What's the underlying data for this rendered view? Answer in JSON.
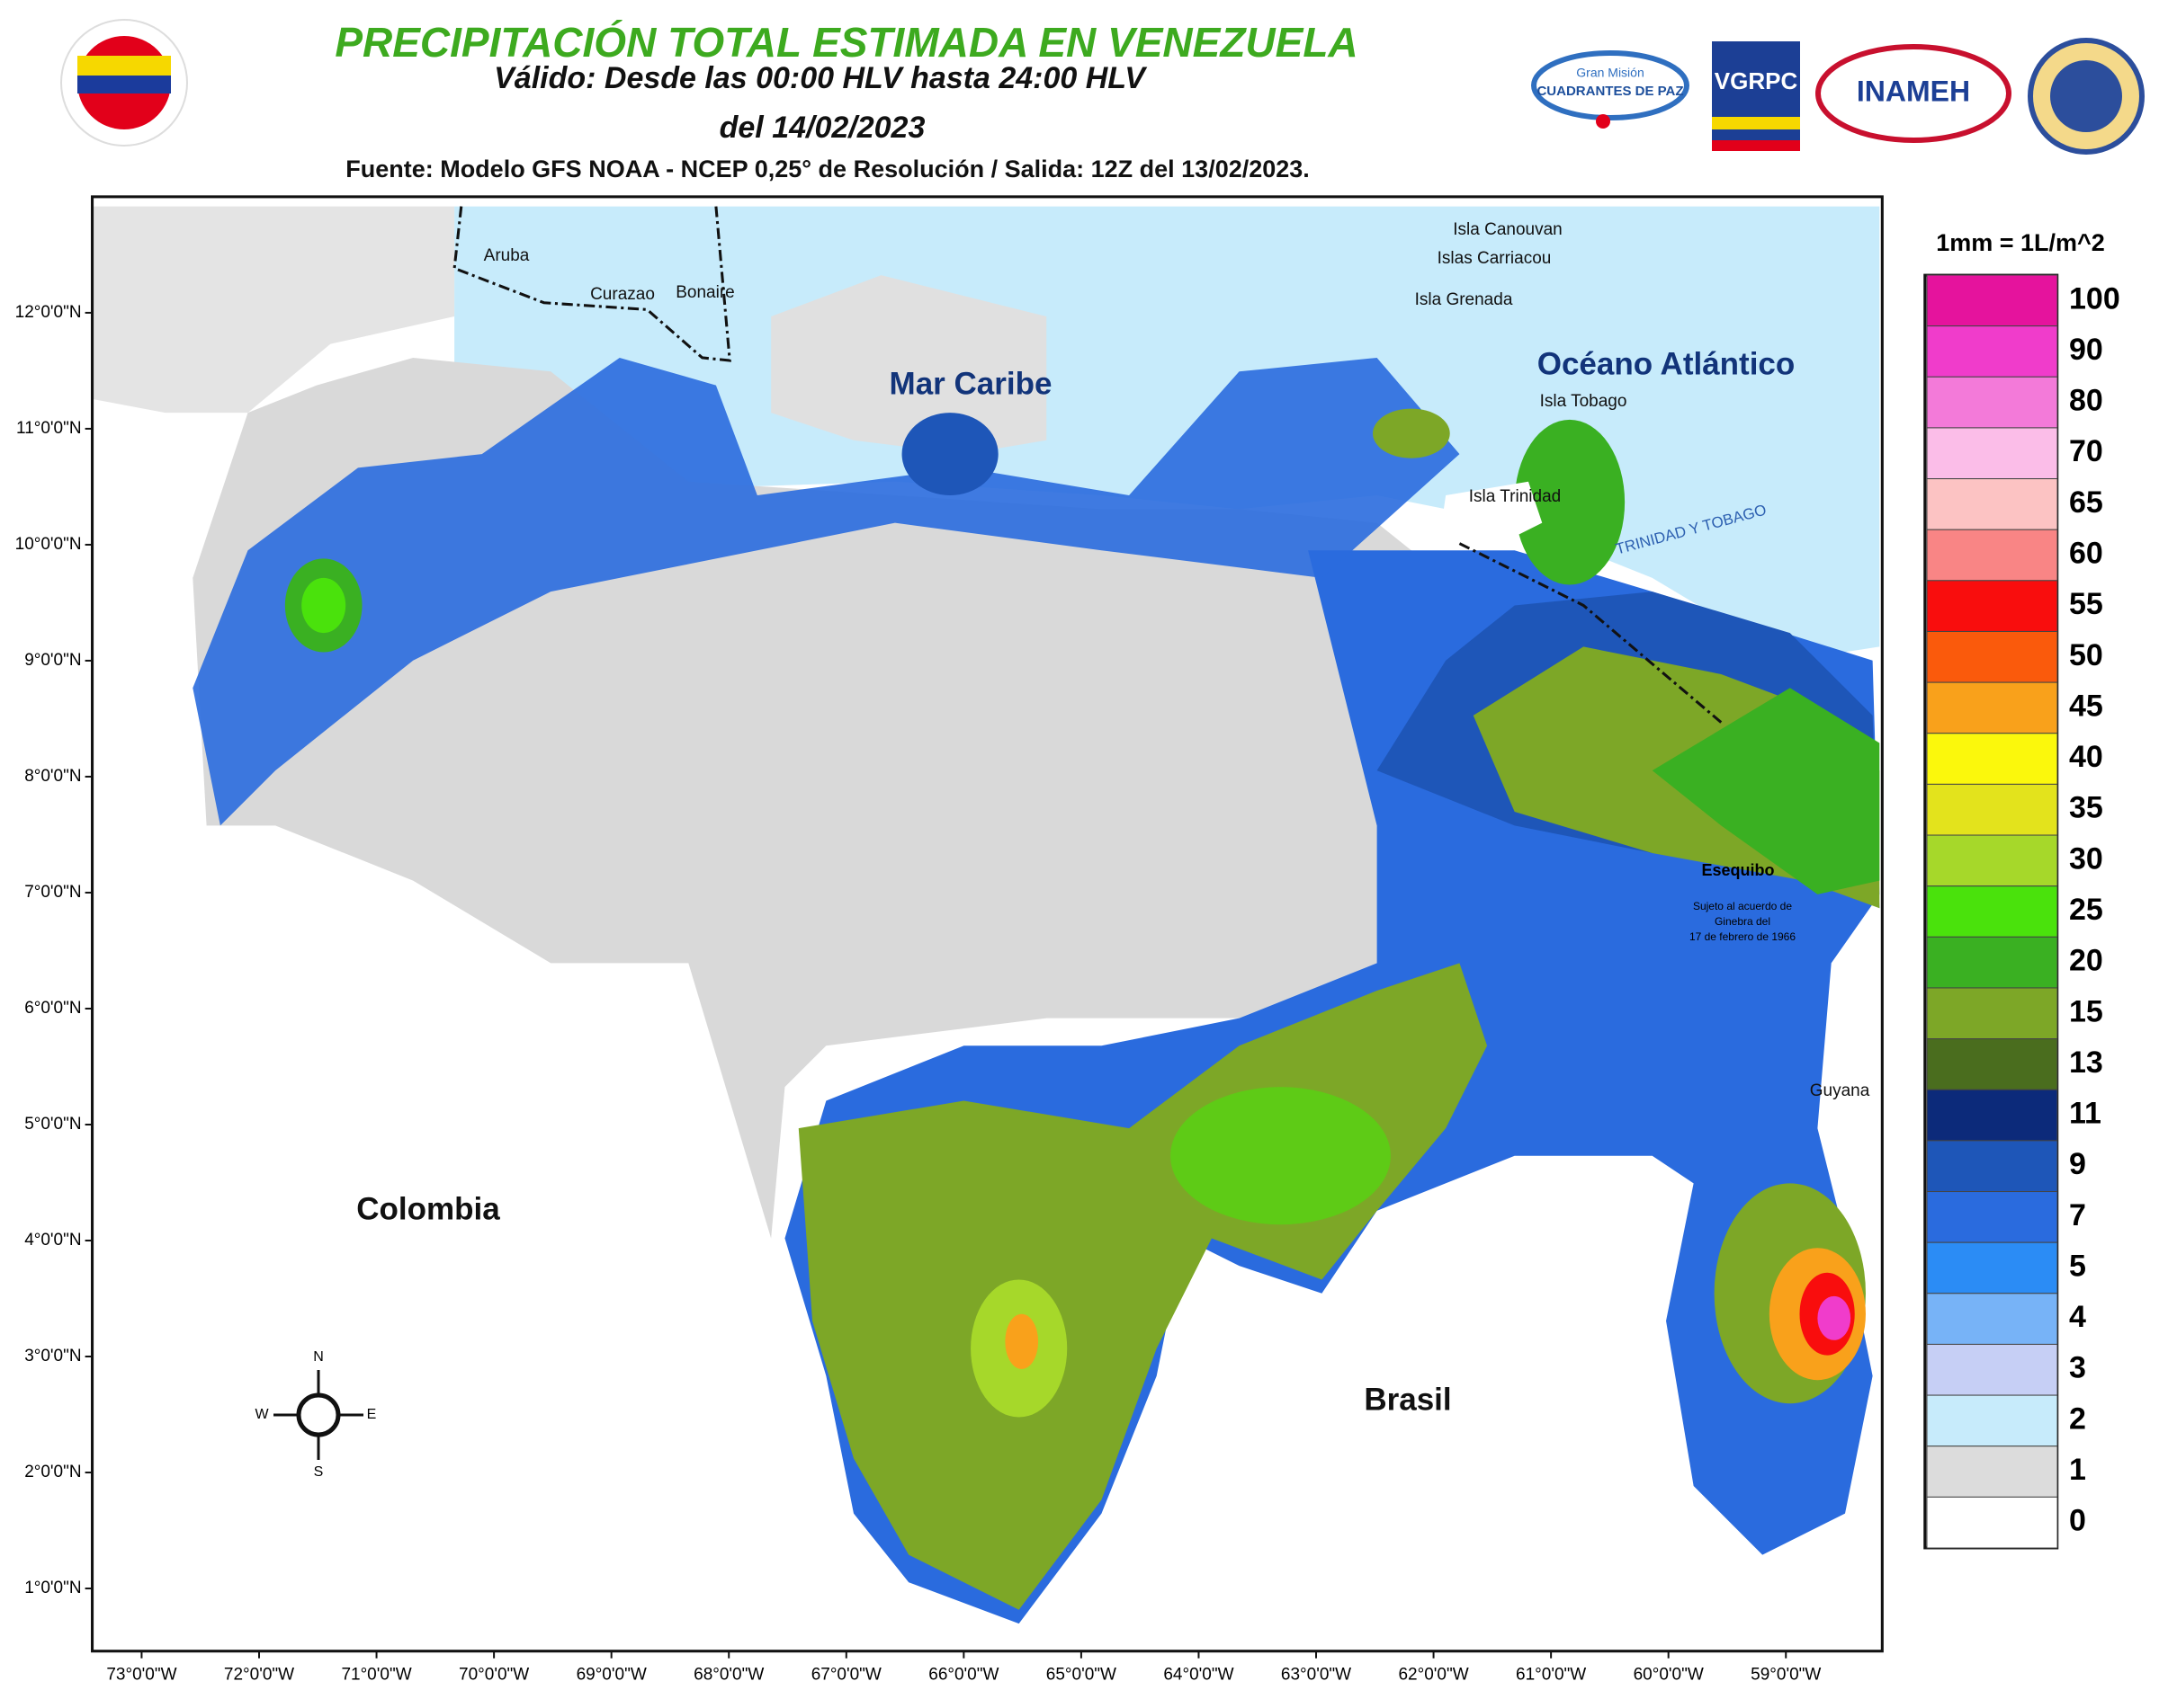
{
  "header": {
    "title": "PRECIPITACIÓN TOTAL ESTIMADA EN VENEZUELA",
    "valid": "Válido: Desde las 00:00 HLV hasta 24:00 HLV",
    "date": "del 14/02/2023",
    "source": "Fuente: Modelo GFS NOAA - NCEP 0,25° de Resolución / Salida: 12Z del 13/02/2023."
  },
  "logos": {
    "cuadrantes_top": "Gran Misión",
    "cuadrantes": "CUADRANTES DE PAZ",
    "vgrpc": "VGRPC",
    "inameh": "INAMEH"
  },
  "map": {
    "latlim": [
      0.46,
      13.0
    ],
    "lonlim": [
      -73.42,
      -58.18
    ],
    "lat_ticks": [
      {
        "value": 12,
        "label": "12°0'0\"N"
      },
      {
        "value": 11,
        "label": "11°0'0\"N"
      },
      {
        "value": 10,
        "label": "10°0'0\"N"
      },
      {
        "value": 9,
        "label": "9°0'0\"N"
      },
      {
        "value": 8,
        "label": "8°0'0\"N"
      },
      {
        "value": 7,
        "label": "7°0'0\"N"
      },
      {
        "value": 6,
        "label": "6°0'0\"N"
      },
      {
        "value": 5,
        "label": "5°0'0\"N"
      },
      {
        "value": 4,
        "label": "4°0'0\"N"
      },
      {
        "value": 3,
        "label": "3°0'0\"N"
      },
      {
        "value": 2,
        "label": "2°0'0\"N"
      },
      {
        "value": 1,
        "label": "1°0'0\"N"
      }
    ],
    "lon_ticks": [
      {
        "value": -73,
        "label": "73°0'0\"W"
      },
      {
        "value": -72,
        "label": "72°0'0\"W"
      },
      {
        "value": -71,
        "label": "71°0'0\"W"
      },
      {
        "value": -70,
        "label": "70°0'0\"W"
      },
      {
        "value": -69,
        "label": "69°0'0\"W"
      },
      {
        "value": -68,
        "label": "68°0'0\"W"
      },
      {
        "value": -67,
        "label": "67°0'0\"W"
      },
      {
        "value": -66,
        "label": "66°0'0\"W"
      },
      {
        "value": -65,
        "label": "65°0'0\"W"
      },
      {
        "value": -64,
        "label": "64°0'0\"W"
      },
      {
        "value": -63,
        "label": "63°0'0\"W"
      },
      {
        "value": -62,
        "label": "62°0'0\"W"
      },
      {
        "value": -61,
        "label": "61°0'0\"W"
      },
      {
        "value": -60,
        "label": "60°0'0\"W"
      },
      {
        "value": -59,
        "label": "59°0'0\"W"
      }
    ],
    "places": [
      "Aruba",
      "Curazao",
      "Bonaire",
      "Mar Caribe",
      "Isla Canouvan",
      "Islas Carriacou",
      "Isla Grenada",
      "Océano Atlántico",
      "Isla Tobago",
      "Isla Trinidad",
      "Esequibo",
      "Sujeto al acuerdo de",
      "Ginebra del",
      "17 de febrero de 1966",
      "Guyana",
      "Colombia",
      "Brasil",
      "TRINIDAD Y TOBAGO"
    ],
    "compass": [
      "N",
      "S",
      "W",
      "E"
    ]
  },
  "legend": {
    "unit": "1mm = 1L/m^2",
    "items": [
      {
        "value": 100,
        "color": "#e5139d"
      },
      {
        "value": 90,
        "color": "#f03ccb"
      },
      {
        "value": 80,
        "color": "#f37ad9"
      },
      {
        "value": 70,
        "color": "#fbbde8"
      },
      {
        "value": 65,
        "color": "#fcc3c3"
      },
      {
        "value": 60,
        "color": "#f98585"
      },
      {
        "value": 55,
        "color": "#f90d0d"
      },
      {
        "value": 50,
        "color": "#fa5a0c"
      },
      {
        "value": 45,
        "color": "#f9a11b"
      },
      {
        "value": 40,
        "color": "#fbf80c"
      },
      {
        "value": 35,
        "color": "#e3e31c"
      },
      {
        "value": 30,
        "color": "#a6d82a"
      },
      {
        "value": 25,
        "color": "#4ae20c"
      },
      {
        "value": 20,
        "color": "#3ab022"
      },
      {
        "value": 15,
        "color": "#7da727"
      },
      {
        "value": 13,
        "color": "#4a6d1e"
      },
      {
        "value": 11,
        "color": "#0c2a7a"
      },
      {
        "value": 9,
        "color": "#1e56b8"
      },
      {
        "value": 7,
        "color": "#2a6bde"
      },
      {
        "value": 5,
        "color": "#2b8cf5"
      },
      {
        "value": 4,
        "color": "#77b3f7"
      },
      {
        "value": 3,
        "color": "#c6cff5"
      },
      {
        "value": 2,
        "color": "#c7ebfb"
      },
      {
        "value": 1,
        "color": "#dcdcdc"
      },
      {
        "value": 0,
        "color": "#ffffff"
      }
    ]
  }
}
